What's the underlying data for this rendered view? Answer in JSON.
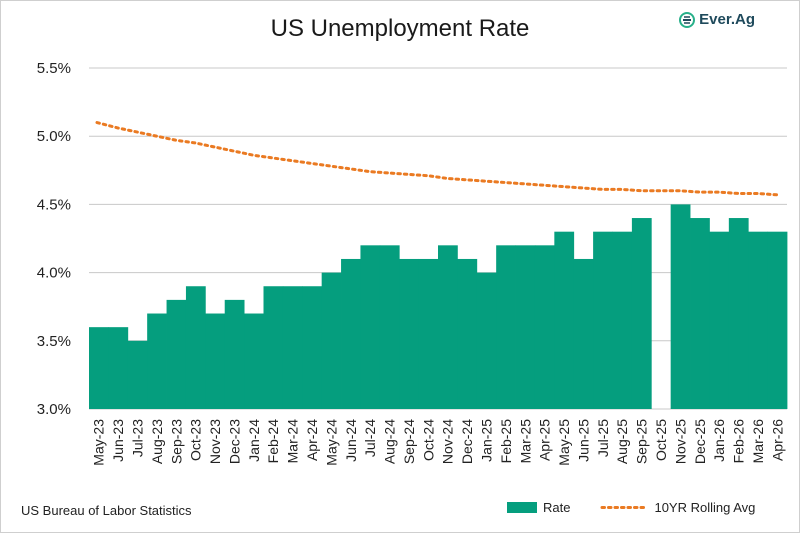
{
  "header": {
    "title": "US Unemployment Rate",
    "logo_text": "Ever.Ag"
  },
  "footer": {
    "source": "US Bureau of Labor Statistics"
  },
  "colors": {
    "bar": "#059e7e",
    "line": "#ea7a22",
    "grid": "#c8c8c8",
    "logo_text": "#1f4a5c",
    "logo_icon": "#28b08a"
  },
  "chart_data": {
    "type": "bar",
    "title": "US Unemployment Rate",
    "categories": [
      "May-23",
      "Jun-23",
      "Jul-23",
      "Aug-23",
      "Sep-23",
      "Oct-23",
      "Nov-23",
      "Dec-23",
      "Jan-24",
      "Feb-24",
      "Mar-24",
      "Apr-24",
      "May-24",
      "Jun-24",
      "Jul-24",
      "Aug-24",
      "Sep-24",
      "Oct-24",
      "Nov-24",
      "Dec-24",
      "Jan-25",
      "Feb-25",
      "Mar-25",
      "Apr-25",
      "May-25",
      "Jun-25",
      "Jul-25",
      "Aug-25",
      "Sep-25",
      "Oct-25",
      "Nov-25",
      "Dec-25",
      "Jan-26",
      "Feb-26",
      "Mar-26",
      "Apr-26"
    ],
    "series": [
      {
        "name": "Rate",
        "type": "bar",
        "values": [
          3.6,
          3.6,
          3.5,
          3.7,
          3.8,
          3.9,
          3.7,
          3.8,
          3.7,
          3.9,
          3.9,
          3.9,
          4.0,
          4.1,
          4.2,
          4.2,
          4.1,
          4.1,
          4.2,
          4.1,
          4.0,
          4.2,
          4.2,
          4.2,
          4.3,
          4.1,
          4.3,
          4.3,
          4.4,
          null,
          4.5,
          4.4,
          4.3,
          4.4,
          4.3,
          4.3
        ]
      },
      {
        "name": "10YR Rolling Avg",
        "type": "line",
        "style": "dotted",
        "values": [
          5.1,
          5.06,
          5.03,
          5.0,
          4.97,
          4.95,
          4.92,
          4.89,
          4.86,
          4.84,
          4.82,
          4.8,
          4.78,
          4.76,
          4.74,
          4.73,
          4.72,
          4.71,
          4.69,
          4.68,
          4.67,
          4.66,
          4.65,
          4.64,
          4.63,
          4.62,
          4.61,
          4.61,
          4.6,
          4.6,
          4.6,
          4.59,
          4.59,
          4.58,
          4.58,
          4.57
        ]
      }
    ],
    "yticks": [
      "5.5%",
      "5.0%",
      "4.5%",
      "4.0%",
      "3.5%",
      "3.0%"
    ],
    "ylim": [
      3.0,
      5.5
    ],
    "grid": true,
    "legend_position": "bottom-right"
  }
}
